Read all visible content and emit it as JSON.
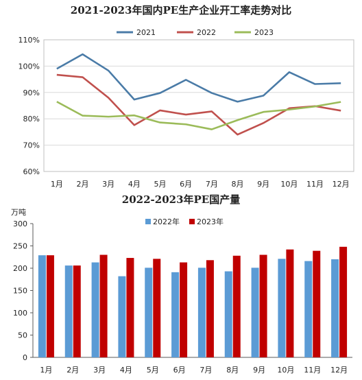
{
  "chart_data": [
    {
      "type": "line",
      "title": "2021-2023年国内PE生产企业开工率走势对比",
      "categories": [
        "1月",
        "2月",
        "3月",
        "4月",
        "5月",
        "6月",
        "7月",
        "8月",
        "9月",
        "10月",
        "11月",
        "12月"
      ],
      "ylim": [
        60,
        110
      ],
      "yticks": [
        "60%",
        "70%",
        "80%",
        "90%",
        "100%",
        "110%"
      ],
      "grid": true,
      "legend_position": "top",
      "series": [
        {
          "name": "2021",
          "color": "#4a7ba7",
          "values": [
            99,
            104.5,
            98.3,
            87.3,
            89.8,
            94.8,
            89.8,
            86.5,
            88.8,
            97.7,
            93.2,
            93.5
          ]
        },
        {
          "name": "2022",
          "color": "#c0504d",
          "values": [
            96.7,
            95.8,
            88,
            77.6,
            83.2,
            81.6,
            82.8,
            74,
            78.4,
            84,
            84.8,
            83.1
          ]
        },
        {
          "name": "2023",
          "color": "#9bbb59",
          "values": [
            86.5,
            81.2,
            80.8,
            81.3,
            78.6,
            77.9,
            76,
            79.5,
            82.6,
            83.5,
            84.7,
            86.4
          ]
        }
      ]
    },
    {
      "type": "bar",
      "title": "2022-2023年PE国产量",
      "unit_label": "万吨",
      "categories": [
        "1月",
        "2月",
        "3月",
        "4月",
        "5月",
        "6月",
        "7月",
        "8月",
        "9月",
        "10月",
        "11月",
        "12月"
      ],
      "ylim": [
        0,
        300
      ],
      "yticks": [
        "0",
        "50",
        "100",
        "150",
        "200",
        "250",
        "300"
      ],
      "grid": false,
      "legend_position": "top",
      "series": [
        {
          "name": "2022年",
          "color": "#5b9bd5",
          "values": [
            229,
            206,
            213,
            182,
            201,
            191,
            201,
            193,
            201,
            221,
            216,
            220
          ]
        },
        {
          "name": "2023年",
          "color": "#c00000",
          "values": [
            229,
            206,
            230,
            223,
            221,
            213,
            218,
            228,
            230,
            242,
            239,
            248
          ]
        }
      ]
    }
  ]
}
